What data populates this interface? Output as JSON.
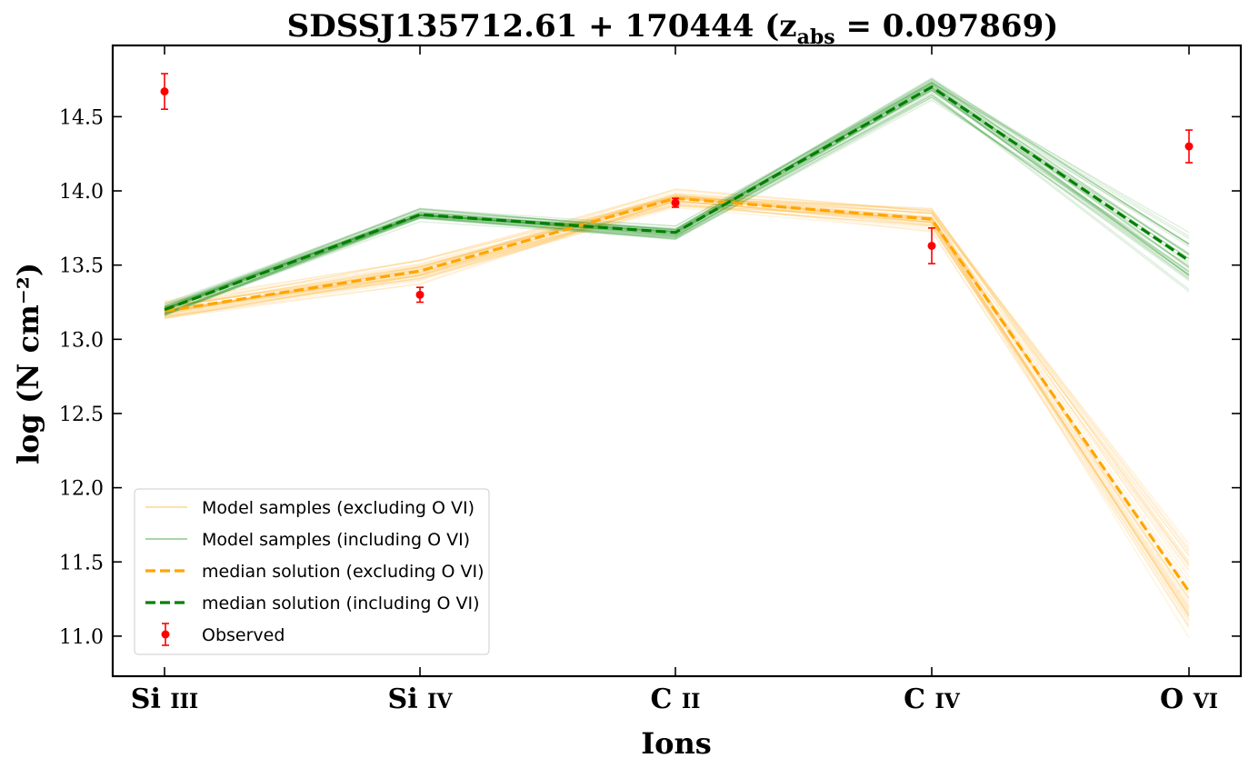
{
  "chart_data": {
    "type": "line",
    "title": "SDSSJ135712.61 + 170444 (z_abs = 0.097869)",
    "title_parts": {
      "main": "SDSSJ135712.61 + 170444 (z",
      "sub": "abs",
      "tail": " = 0.097869)"
    },
    "xlabel": "Ions",
    "ylabel": "log (N cm⁻²)",
    "categories": [
      "Si III",
      "Si IV",
      "C II",
      "C IV",
      "O VI"
    ],
    "category_labels": [
      {
        "el": "Si",
        "ion": "III"
      },
      {
        "el": "Si",
        "ion": "IV"
      },
      {
        "el": "C",
        "ion": "II"
      },
      {
        "el": "C",
        "ion": "IV"
      },
      {
        "el": "O",
        "ion": "VI"
      }
    ],
    "ylim": [
      10.73,
      14.98
    ],
    "yticks": [
      "11.0",
      "11.5",
      "12.0",
      "12.5",
      "13.0",
      "13.5",
      "14.0",
      "14.5"
    ],
    "grid": false,
    "legend_position": "lower-left",
    "legend": [
      "Model samples (excluding O VI)",
      "Model samples (including O VI)",
      "median solution (excluding O VI)",
      "median solution (including O VI)",
      "Observed"
    ],
    "series": [
      {
        "name": "median solution (excluding O VI)",
        "color": "#ffa500",
        "style": "dashed",
        "values": [
          13.19,
          13.46,
          13.95,
          13.81,
          11.3
        ]
      },
      {
        "name": "median solution (including O VI)",
        "color": "#008000",
        "style": "dashed",
        "values": [
          13.2,
          13.84,
          13.72,
          14.7,
          13.53
        ]
      },
      {
        "name": "Observed",
        "color": "#ff0000",
        "style": "errorbar",
        "values": [
          14.67,
          13.3,
          13.92,
          13.63,
          14.3
        ],
        "errors": [
          0.12,
          0.05,
          0.03,
          0.12,
          0.11
        ]
      }
    ],
    "sample_bands": [
      {
        "name": "Model samples (excluding O VI)",
        "color": "#ffa500",
        "spread": [
          0.07,
          0.1,
          0.07,
          0.1,
          0.4
        ]
      },
      {
        "name": "Model samples (including O VI)",
        "color": "#008000",
        "spread": [
          0.05,
          0.05,
          0.06,
          0.09,
          0.25
        ]
      }
    ]
  }
}
